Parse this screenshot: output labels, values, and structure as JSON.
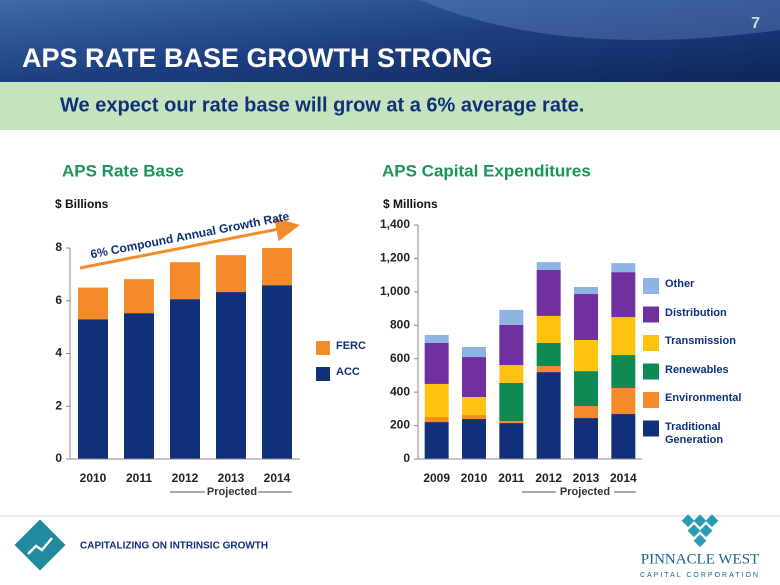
{
  "page_number": "7",
  "title": "APS RATE BASE GROWTH STRONG",
  "subtitle": "We expect our rate base will grow at a 6% average rate.",
  "footer": "CAPITALIZING ON INTRINSIC GROWTH",
  "logo": {
    "name": "PINNACLE WEST",
    "tagline": "CAPITAL CORPORATION"
  },
  "chart_data": [
    {
      "type": "stacked_bar",
      "title": "APS Rate Base",
      "y_label": "$ Billions",
      "annotation": "6% Compound Annual Growth Rate",
      "projected_label": "Projected",
      "categories": [
        "2010",
        "2011",
        "2012",
        "2013",
        "2014"
      ],
      "series": [
        {
          "name": "ACC",
          "color": "#10307a",
          "values": [
            5.3,
            5.53,
            6.06,
            6.33,
            6.59
          ]
        },
        {
          "name": "FERC",
          "color": "#f58a2a",
          "values": [
            1.2,
            1.29,
            1.4,
            1.4,
            1.41
          ]
        }
      ],
      "ylim": [
        0,
        8
      ],
      "yticks": [
        0,
        2,
        4,
        6,
        8
      ],
      "grid": false
    },
    {
      "type": "stacked_bar",
      "title": "APS Capital Expenditures",
      "y_label": "$ Millions",
      "projected_label": "Projected",
      "categories": [
        "2009",
        "2010",
        "2011",
        "2012",
        "2013",
        "2014"
      ],
      "series": [
        {
          "name": "Traditional Generation",
          "color": "#10307a",
          "values": [
            221,
            239,
            215,
            520,
            245,
            269
          ]
        },
        {
          "name": "Environmental",
          "color": "#f58a2a",
          "values": [
            30,
            24,
            12,
            36,
            72,
            156
          ]
        },
        {
          "name": "Renewables",
          "color": "#0e8a52",
          "values": [
            0,
            0,
            228,
            138,
            209,
            197
          ]
        },
        {
          "name": "Transmission",
          "color": "#ffc20e",
          "values": [
            198,
            108,
            107,
            162,
            186,
            227
          ]
        },
        {
          "name": "Distribution",
          "color": "#7030a0",
          "values": [
            245,
            239,
            240,
            275,
            275,
            269
          ]
        },
        {
          "name": "Other",
          "color": "#8eb4e3",
          "values": [
            48,
            60,
            90,
            47,
            42,
            54
          ]
        }
      ],
      "ylim": [
        0,
        1400
      ],
      "yticks": [
        0,
        200,
        400,
        600,
        800,
        {
          "value": 1000,
          "label": "1,000"
        },
        {
          "value": 1200,
          "label": "1,200"
        },
        {
          "value": 1400,
          "label": "1,400"
        }
      ],
      "grid": false
    }
  ]
}
